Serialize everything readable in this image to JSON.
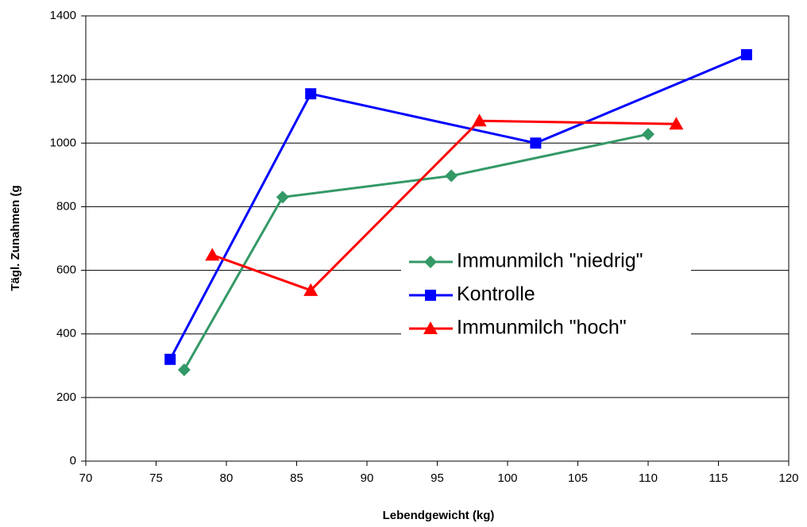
{
  "chart_data": {
    "type": "line",
    "xlabel": "Lebendgewicht (kg)",
    "ylabel": "Tägl. Zunahmen (g",
    "xlim": [
      70,
      120
    ],
    "xticks": [
      70,
      75,
      80,
      85,
      90,
      95,
      100,
      105,
      110,
      115,
      120
    ],
    "ylim": [
      0,
      1400
    ],
    "yticks": [
      0,
      200,
      400,
      600,
      800,
      1000,
      1200,
      1400
    ],
    "grid": true,
    "legend": "right",
    "series": [
      {
        "name": "Immunmilch \"niedrig\"",
        "color": "#339966",
        "marker": "diamond",
        "x": [
          77,
          84,
          96,
          110
        ],
        "values": [
          287,
          830,
          897,
          1028
        ]
      },
      {
        "name": "Kontrolle",
        "color": "#0000ff",
        "marker": "square",
        "x": [
          76,
          86,
          102,
          117
        ],
        "values": [
          320,
          1155,
          1000,
          1278
        ]
      },
      {
        "name": "Immunmilch \"hoch\"",
        "color": "#ff0000",
        "marker": "triangle",
        "x": [
          79,
          86,
          98,
          112
        ],
        "values": [
          648,
          537,
          1070,
          1060
        ]
      }
    ]
  }
}
